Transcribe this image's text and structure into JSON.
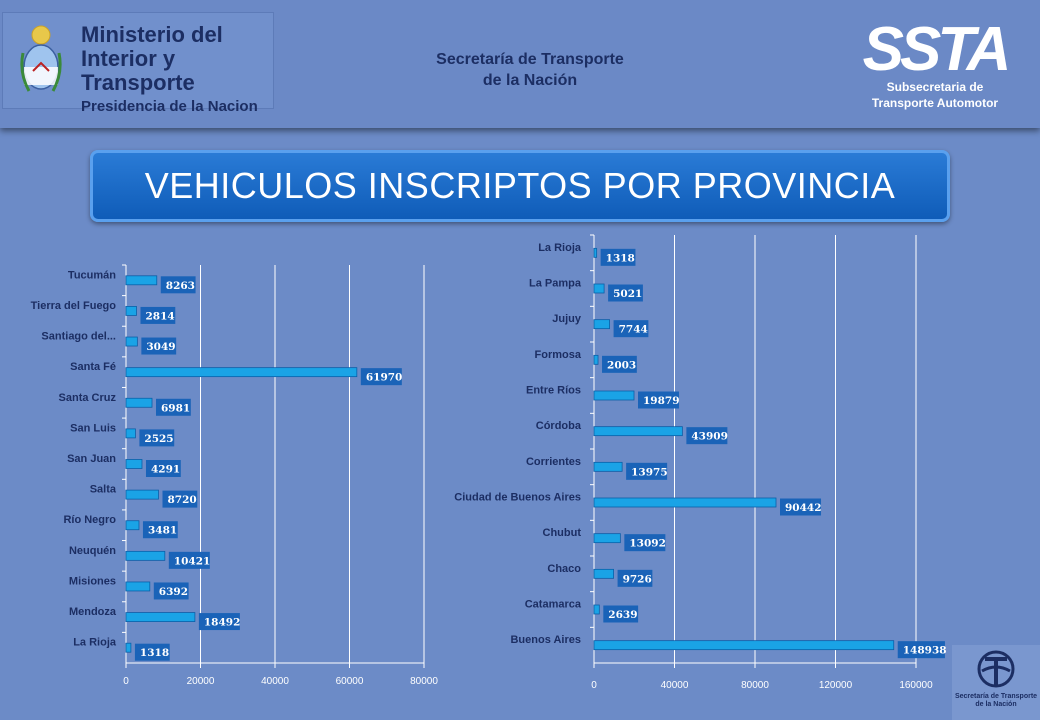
{
  "header": {
    "ministry_line1": "Ministerio del",
    "ministry_line2": "Interior y Transporte",
    "ministry_line3": "Presidencia de la Nacion",
    "secretaria_line1": "Secretaría de Transporte",
    "secretaria_line2": "de la Nación",
    "ssta_logo_text": "SSTA",
    "ssta_sub_line1": "Subsecretaria de",
    "ssta_sub_line2": "Transporte Automotor"
  },
  "title": "VEHICULOS INSCRIPTOS POR PROVINCIA",
  "footer": {
    "line1": "Secretaría de Transporte",
    "line2": "de la Nación"
  },
  "colors": {
    "background": "#6c8bc7",
    "bar": "#1aa3e6",
    "label_box": "#1a63b8",
    "gridline": "#ffffff",
    "label_text": "#1c2e63"
  },
  "chart_data": [
    {
      "type": "bar",
      "orientation": "horizontal",
      "categories": [
        "Tucumán",
        "Tierra del Fuego",
        "Santiago del...",
        "Santa Fé",
        "Santa Cruz",
        "San Luis",
        "San Juan",
        "Salta",
        "Río Negro",
        "Neuquén",
        "Misiones",
        "Mendoza",
        "La Rioja"
      ],
      "values": [
        8263,
        2814,
        3049,
        61970,
        6981,
        2525,
        4291,
        8720,
        3481,
        10421,
        6392,
        18492,
        1318
      ],
      "xlim": [
        0,
        80000
      ],
      "xticks": [
        0,
        20000,
        40000,
        60000,
        80000
      ],
      "grid": true
    },
    {
      "type": "bar",
      "orientation": "horizontal",
      "categories": [
        "La Rioja",
        "La Pampa",
        "Jujuy",
        "Formosa",
        "Entre Ríos",
        "Córdoba",
        "Corrientes",
        "Ciudad de Buenos Aires",
        "Chubut",
        "Chaco",
        "Catamarca",
        "Buenos Aires"
      ],
      "values": [
        1318,
        5021,
        7744,
        2003,
        19879,
        43909,
        13975,
        90442,
        13092,
        9726,
        2639,
        148938
      ],
      "xlim": [
        0,
        160000
      ],
      "xticks": [
        0,
        40000,
        80000,
        120000,
        160000
      ],
      "grid": true
    }
  ]
}
